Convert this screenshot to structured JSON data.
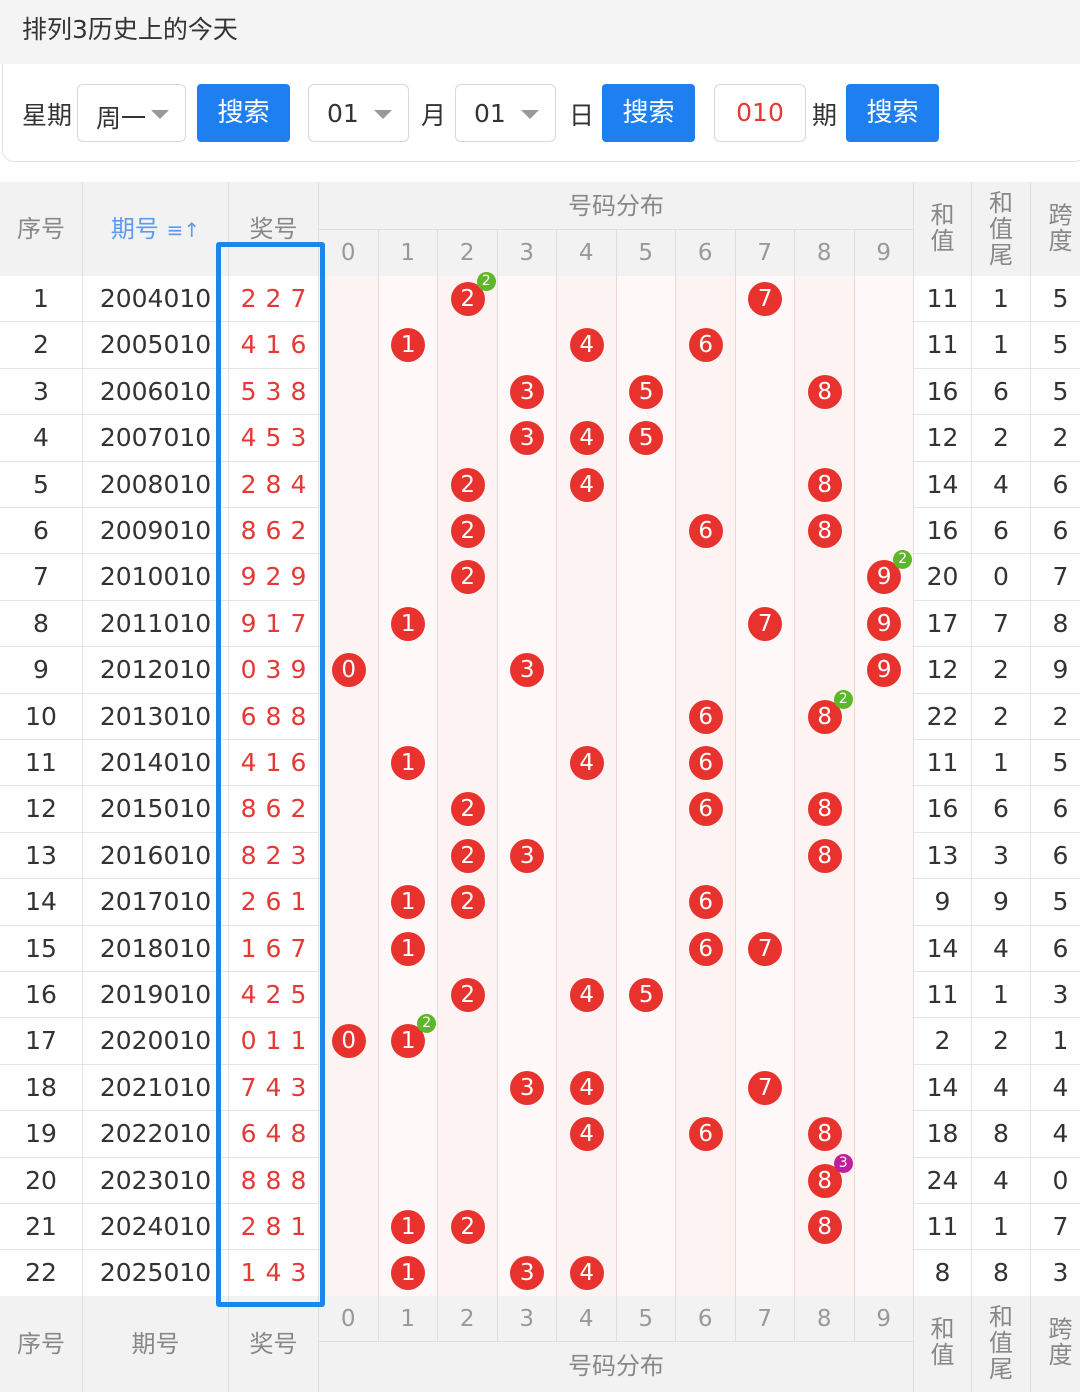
{
  "page_title": "排列3历史上的今天",
  "search": {
    "weekday_label": "星期",
    "weekday_value": "周一",
    "search_btn": "搜索",
    "month_value": "01",
    "month_label": "月",
    "day_value": "01",
    "day_label": "日",
    "issue_value": "010",
    "issue_label": "期"
  },
  "header": {
    "seq": "序号",
    "issue": "期号",
    "sort_icon": "≡↑",
    "award": "奖号",
    "dist": "号码分布",
    "digits": [
      "0",
      "1",
      "2",
      "3",
      "4",
      "5",
      "6",
      "7",
      "8",
      "9"
    ],
    "sum": "和值",
    "sum_tail": "和值尾",
    "span": "跨度"
  },
  "footer": {
    "seq": "序号",
    "issue": "期号",
    "award": "奖号",
    "dist": "号码分布",
    "sum": "和值",
    "sum_tail": "和值尾",
    "span": "跨度"
  },
  "colors": {
    "ball": "#e8322e",
    "badge2": "#5cb82a",
    "badge3": "#c21d9b",
    "accent": "#1e7ff0"
  },
  "rows": [
    {
      "seq": "1",
      "issue": "2004010",
      "award": "227",
      "sum": "11",
      "tail": "1",
      "span": "5"
    },
    {
      "seq": "2",
      "issue": "2005010",
      "award": "416",
      "sum": "11",
      "tail": "1",
      "span": "5"
    },
    {
      "seq": "3",
      "issue": "2006010",
      "award": "538",
      "sum": "16",
      "tail": "6",
      "span": "5"
    },
    {
      "seq": "4",
      "issue": "2007010",
      "award": "453",
      "sum": "12",
      "tail": "2",
      "span": "2"
    },
    {
      "seq": "5",
      "issue": "2008010",
      "award": "284",
      "sum": "14",
      "tail": "4",
      "span": "6"
    },
    {
      "seq": "6",
      "issue": "2009010",
      "award": "862",
      "sum": "16",
      "tail": "6",
      "span": "6"
    },
    {
      "seq": "7",
      "issue": "2010010",
      "award": "929",
      "sum": "20",
      "tail": "0",
      "span": "7"
    },
    {
      "seq": "8",
      "issue": "2011010",
      "award": "917",
      "sum": "17",
      "tail": "7",
      "span": "8"
    },
    {
      "seq": "9",
      "issue": "2012010",
      "award": "039",
      "sum": "12",
      "tail": "2",
      "span": "9"
    },
    {
      "seq": "10",
      "issue": "2013010",
      "award": "688",
      "sum": "22",
      "tail": "2",
      "span": "2"
    },
    {
      "seq": "11",
      "issue": "2014010",
      "award": "416",
      "sum": "11",
      "tail": "1",
      "span": "5"
    },
    {
      "seq": "12",
      "issue": "2015010",
      "award": "862",
      "sum": "16",
      "tail": "6",
      "span": "6"
    },
    {
      "seq": "13",
      "issue": "2016010",
      "award": "823",
      "sum": "13",
      "tail": "3",
      "span": "6"
    },
    {
      "seq": "14",
      "issue": "2017010",
      "award": "261",
      "sum": "9",
      "tail": "9",
      "span": "5"
    },
    {
      "seq": "15",
      "issue": "2018010",
      "award": "167",
      "sum": "14",
      "tail": "4",
      "span": "6"
    },
    {
      "seq": "16",
      "issue": "2019010",
      "award": "425",
      "sum": "11",
      "tail": "1",
      "span": "3"
    },
    {
      "seq": "17",
      "issue": "2020010",
      "award": "011",
      "sum": "2",
      "tail": "2",
      "span": "1"
    },
    {
      "seq": "18",
      "issue": "2021010",
      "award": "743",
      "sum": "14",
      "tail": "4",
      "span": "4"
    },
    {
      "seq": "19",
      "issue": "2022010",
      "award": "648",
      "sum": "18",
      "tail": "8",
      "span": "4"
    },
    {
      "seq": "20",
      "issue": "2023010",
      "award": "888",
      "sum": "24",
      "tail": "4",
      "span": "0"
    },
    {
      "seq": "21",
      "issue": "2024010",
      "award": "281",
      "sum": "11",
      "tail": "1",
      "span": "7"
    },
    {
      "seq": "22",
      "issue": "2025010",
      "award": "143",
      "sum": "8",
      "tail": "8",
      "span": "3"
    }
  ]
}
